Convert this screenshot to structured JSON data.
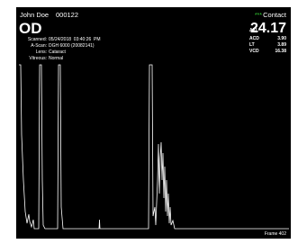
{
  "header": {
    "patient_name": "John Doe",
    "patient_id": "000122",
    "eye": "OD",
    "mode_stars": "***",
    "mode": "Contact"
  },
  "info": [
    {
      "label": "Scanned:",
      "value": "05/24/2018  03:40:26  PM"
    },
    {
      "label": "A-Scan:",
      "value": "DGH 6000 (20082141)"
    },
    {
      "label": "Lens:",
      "value": "Cataract"
    },
    {
      "label": "Vitreous:",
      "value": "Normal"
    }
  ],
  "measurements": [
    {
      "label": "AXL",
      "value": "24.17"
    },
    {
      "label": "ACD",
      "value": "3.90"
    },
    {
      "label": "LT",
      "value": "3.89"
    },
    {
      "label": "VCD",
      "value": "16.38"
    }
  ],
  "footer": {
    "frame": "Frame 402"
  }
}
